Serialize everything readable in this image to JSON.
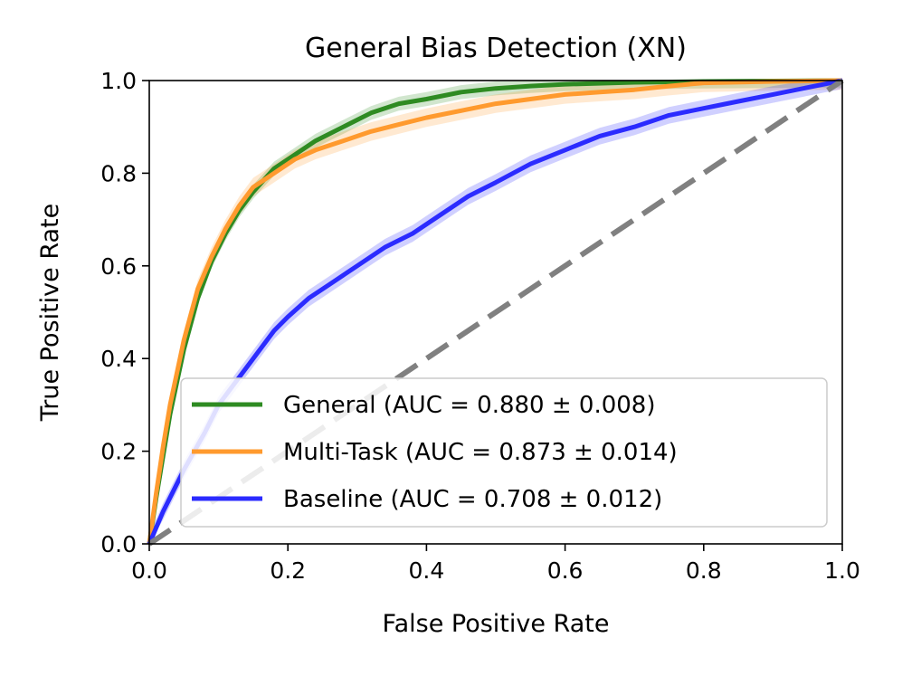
{
  "chart_data": {
    "type": "line",
    "title": "General Bias Detection (XN)",
    "xlabel": "False Positive Rate",
    "ylabel": "True Positive Rate",
    "xlim": [
      0.0,
      1.0
    ],
    "ylim": [
      0.0,
      1.0
    ],
    "xticks": [
      "0.0",
      "0.2",
      "0.4",
      "0.6",
      "0.8",
      "1.0"
    ],
    "yticks": [
      "0.0",
      "0.2",
      "0.4",
      "0.6",
      "0.8",
      "1.0"
    ],
    "grid": false,
    "legend_position": "lower-right",
    "chance_line": {
      "x": [
        0,
        1
      ],
      "y": [
        0,
        1
      ],
      "style": "dashed",
      "color": "#808080"
    },
    "series": [
      {
        "name": "General (AUC = 0.880 ± 0.008)",
        "color": "#2e8b22",
        "band": 0.015,
        "x": [
          0,
          0.01,
          0.02,
          0.03,
          0.05,
          0.07,
          0.09,
          0.11,
          0.13,
          0.15,
          0.18,
          0.21,
          0.24,
          0.28,
          0.32,
          0.36,
          0.4,
          0.45,
          0.5,
          0.55,
          0.6,
          0.7,
          0.8,
          0.9,
          1.0
        ],
        "y": [
          0,
          0.1,
          0.19,
          0.28,
          0.42,
          0.53,
          0.61,
          0.67,
          0.72,
          0.76,
          0.81,
          0.84,
          0.87,
          0.9,
          0.93,
          0.95,
          0.96,
          0.975,
          0.983,
          0.988,
          0.992,
          0.996,
          0.998,
          0.999,
          1.0
        ]
      },
      {
        "name": "Multi-Task (AUC = 0.873 ± 0.014)",
        "color": "#ff9a2e",
        "band": 0.02,
        "x": [
          0,
          0.01,
          0.02,
          0.03,
          0.05,
          0.07,
          0.09,
          0.11,
          0.13,
          0.15,
          0.18,
          0.21,
          0.24,
          0.28,
          0.32,
          0.36,
          0.4,
          0.45,
          0.5,
          0.55,
          0.6,
          0.65,
          0.7,
          0.75,
          0.8,
          0.9,
          1.0
        ],
        "y": [
          0,
          0.11,
          0.21,
          0.3,
          0.44,
          0.55,
          0.62,
          0.68,
          0.73,
          0.77,
          0.8,
          0.83,
          0.85,
          0.87,
          0.89,
          0.905,
          0.92,
          0.935,
          0.95,
          0.96,
          0.97,
          0.975,
          0.98,
          0.988,
          0.995,
          0.998,
          1.0
        ]
      },
      {
        "name": "Baseline (AUC = 0.708 ± 0.012)",
        "color": "#2b2bff",
        "band": 0.018,
        "x": [
          0,
          0.02,
          0.05,
          0.08,
          0.1,
          0.12,
          0.15,
          0.18,
          0.2,
          0.23,
          0.26,
          0.3,
          0.34,
          0.38,
          0.42,
          0.46,
          0.5,
          0.55,
          0.6,
          0.65,
          0.7,
          0.75,
          0.8,
          0.85,
          0.9,
          0.95,
          1.0
        ],
        "y": [
          0,
          0.07,
          0.16,
          0.24,
          0.3,
          0.34,
          0.4,
          0.46,
          0.49,
          0.53,
          0.56,
          0.6,
          0.64,
          0.67,
          0.71,
          0.75,
          0.78,
          0.82,
          0.85,
          0.88,
          0.9,
          0.925,
          0.94,
          0.955,
          0.97,
          0.985,
          1.0
        ]
      }
    ]
  }
}
